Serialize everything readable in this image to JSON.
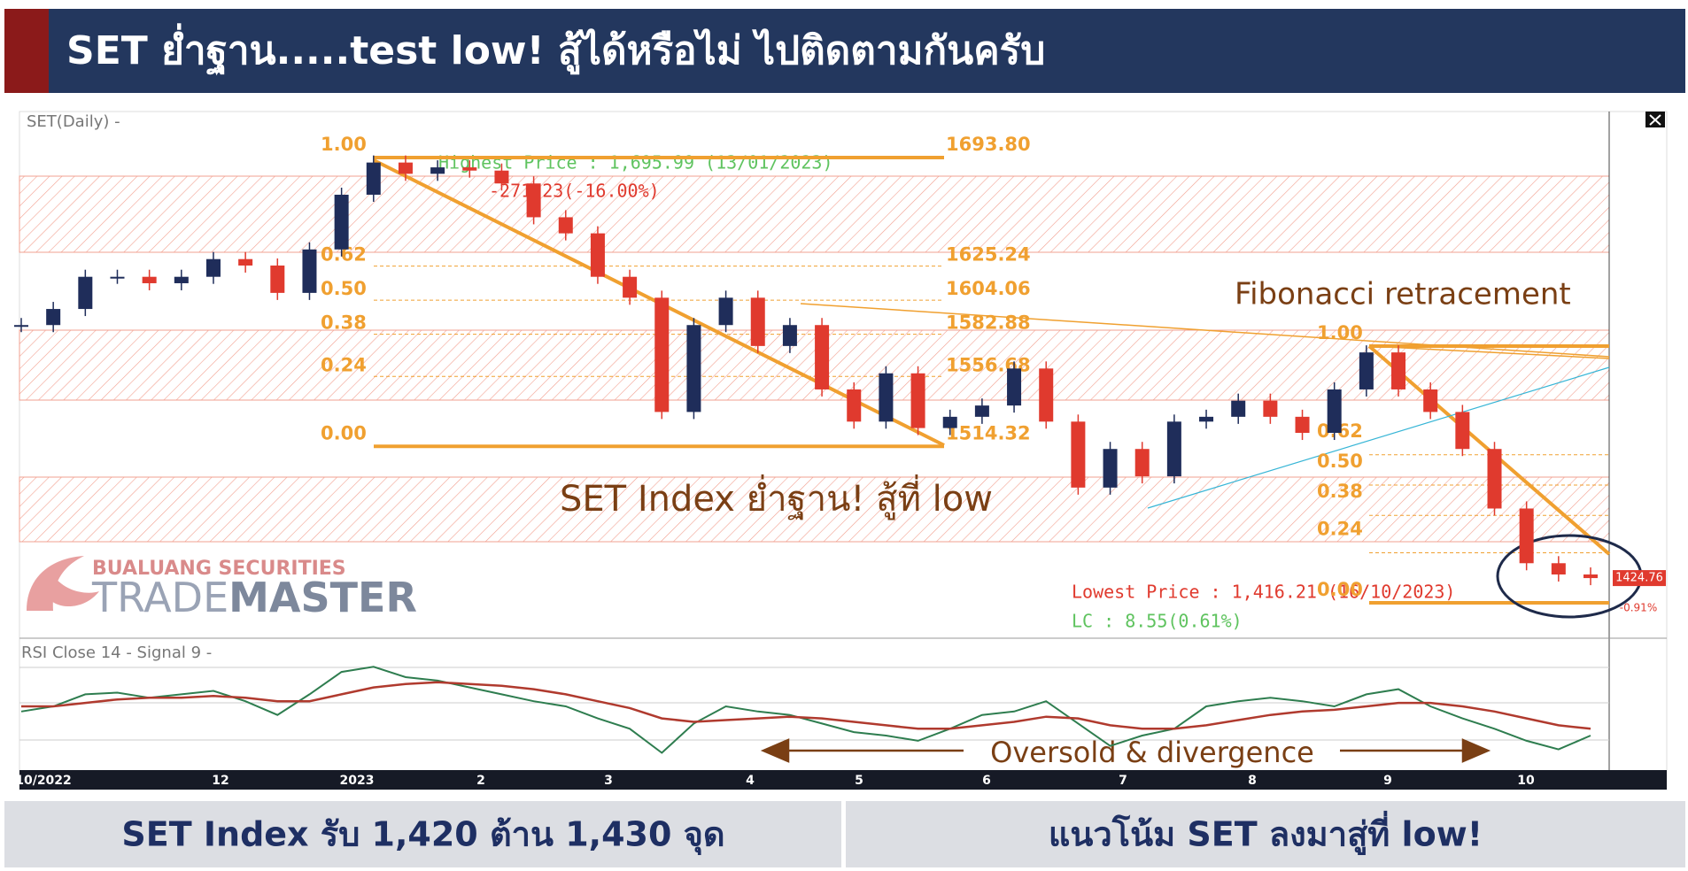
{
  "header": {
    "title": "SET ย่ำฐาน.....test low! สู้ได้หรือไม่ ไปติดตามกันครับ"
  },
  "chart_data": [
    {
      "type": "candlestick",
      "title": "SET(Daily) -",
      "values": [
        1582,
        1592,
        1612,
        1612,
        1608,
        1612,
        1623,
        1619,
        1602,
        1629,
        1663,
        1683,
        1676,
        1680,
        1678,
        1670,
        1649,
        1639,
        1612,
        1599,
        1528,
        1582,
        1599,
        1569,
        1582,
        1542,
        1522,
        1552,
        1518,
        1525,
        1532,
        1555,
        1522,
        1481,
        1505,
        1488,
        1522,
        1525,
        1535,
        1525,
        1515,
        1542,
        1565,
        1542,
        1528,
        1505,
        1468,
        1434,
        1427,
        1424.76
      ],
      "up_color": "#1f2d5a",
      "down_color": "#e03a2e",
      "ylim": [
        1387.4,
        1713.6
      ],
      "x_tick_labels": [
        "10/2022",
        "12",
        "2023",
        "2",
        "3",
        "4",
        "5",
        "6",
        "7",
        "8",
        "9",
        "10"
      ],
      "fib_ratios": [
        {
          "value": 1,
          "label": "1.00"
        },
        {
          "value": 0.618,
          "label": "0.62"
        },
        {
          "value": 0.5,
          "label": "0.50"
        },
        {
          "value": 0.382,
          "label": "0.38"
        },
        {
          "value": 0.236,
          "label": "0.24"
        },
        {
          "value": 0,
          "label": "0.00"
        }
      ],
      "fib_prices": [
        {
          "value": 1693.8,
          "label": "1693.80"
        },
        {
          "value": 1625.24,
          "label": "1625.24"
        },
        {
          "value": 1604.06,
          "label": "1604.06"
        },
        {
          "value": 1582.88,
          "label": "1582.88"
        },
        {
          "value": 1556.68,
          "label": "1556.68"
        },
        {
          "value": 1514.32,
          "label": "1514.32"
        }
      ],
      "fib2_ratios": [
        {
          "value": 1,
          "label": "1.00"
        },
        {
          "value": 0.618,
          "label": "0.62"
        },
        {
          "value": 0.5,
          "label": "0.50"
        },
        {
          "value": 0.382,
          "label": "0.38"
        },
        {
          "value": 0.236,
          "label": "0.24"
        },
        {
          "value": 0,
          "label": "0.00"
        }
      ],
      "fib_color": "#f0a030",
      "annotations": {
        "highest": "Highest Price : 1,695.99 (13/01/2023)",
        "change": "-271.23(-16.00%)",
        "lowest": "Lowest Price : 1,416.21 (16/10/2023)",
        "lc": "LC : 8.55(0.61%)",
        "fib_title": "Fibonacci retracement",
        "comment": "SET Index ย่ำฐาน! สู้ที่ low"
      },
      "last_price": {
        "value": 1424.76,
        "label": "1424.76"
      },
      "last_change": "-0.91%"
    },
    {
      "type": "line",
      "title": "RSI Close 14 - Signal 9 -",
      "ylim": [
        20,
        90
      ],
      "series": [
        {
          "color": "#2e7d4f",
          "values": [
            52,
            55,
            62,
            63,
            60,
            62,
            64,
            58,
            50,
            62,
            75,
            78,
            72,
            70,
            66,
            62,
            58,
            55,
            48,
            42,
            28,
            45,
            55,
            52,
            50,
            45,
            40,
            38,
            35,
            42,
            50,
            52,
            58,
            45,
            32,
            38,
            42,
            55,
            58,
            60,
            58,
            55,
            62,
            65,
            55,
            48,
            42,
            35,
            30,
            38
          ]
        },
        {
          "color": "#b03a2e",
          "values": [
            55,
            55,
            57,
            59,
            60,
            60,
            61,
            60,
            58,
            58,
            62,
            66,
            68,
            69,
            68,
            67,
            65,
            62,
            58,
            54,
            48,
            46,
            47,
            48,
            49,
            48,
            46,
            44,
            42,
            42,
            44,
            46,
            49,
            48,
            44,
            42,
            42,
            44,
            47,
            50,
            52,
            53,
            55,
            57,
            57,
            55,
            52,
            48,
            44,
            42
          ]
        }
      ],
      "annotation": "Oversold & divergence"
    }
  ],
  "logo": {
    "company": "BUALUANG SECURITIES",
    "brand_a": "TRADE",
    "brand_b": "MASTER"
  },
  "footer": {
    "left": "SET Index รับ 1,420 ต้าน 1,430 จุด",
    "right": "แนวโน้ม SET ลงมาสู่ที่ low!"
  }
}
